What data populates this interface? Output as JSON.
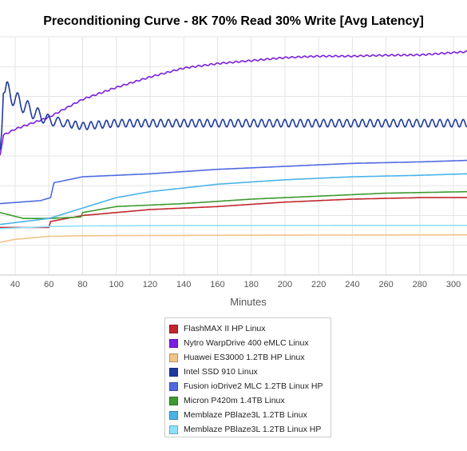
{
  "chart_data": {
    "type": "line",
    "title": "Preconditioning Curve - 8K 70% Read 30% Write [Avg Latency]",
    "xlabel": "Minutes",
    "ylabel": "",
    "xlim": [
      31,
      308
    ],
    "ylim": [
      0,
      80
    ],
    "x_ticks": [
      40,
      60,
      80,
      100,
      120,
      140,
      160,
      180,
      200,
      220,
      240,
      260,
      280,
      300
    ],
    "grid": "both",
    "legend_position": "bottom",
    "series": [
      {
        "name": "FlashMAX II HP Linux",
        "color": "#c0272d",
        "points": [
          [
            31,
            16
          ],
          [
            60,
            16
          ],
          [
            61,
            18
          ],
          [
            80,
            20
          ],
          [
            120,
            22
          ],
          [
            160,
            23
          ],
          [
            200,
            24.5
          ],
          [
            240,
            25.5
          ],
          [
            280,
            26
          ],
          [
            308,
            26
          ]
        ]
      },
      {
        "name": "Nytro WarpDrive 400 eMLC Linux",
        "color": "#7b1fe0",
        "points": [
          [
            31,
            40
          ],
          [
            33,
            47
          ],
          [
            40,
            49
          ],
          [
            60,
            53
          ],
          [
            80,
            59
          ],
          [
            100,
            63
          ],
          [
            120,
            66.5
          ],
          [
            140,
            69.5
          ],
          [
            160,
            71
          ],
          [
            180,
            72
          ],
          [
            200,
            73
          ],
          [
            220,
            73.5
          ],
          [
            240,
            73.5
          ],
          [
            260,
            73.8
          ],
          [
            280,
            73.9
          ],
          [
            308,
            75
          ]
        ]
      },
      {
        "name": "Huawei ES3000 1.2TB HP Linux",
        "color": "#f0c48a",
        "points": [
          [
            31,
            11
          ],
          [
            40,
            12
          ],
          [
            60,
            13
          ],
          [
            80,
            13.2
          ],
          [
            120,
            13.3
          ],
          [
            200,
            13.4
          ],
          [
            308,
            13.5
          ]
        ]
      },
      {
        "name": "Intel SSD 910 Linux",
        "color": "#1f3a9e",
        "points": [
          [
            31,
            42
          ],
          [
            32,
            48
          ],
          [
            33,
            61
          ],
          [
            35,
            62
          ],
          [
            40,
            59
          ],
          [
            50,
            55
          ],
          [
            60,
            52
          ],
          [
            70,
            51
          ],
          [
            80,
            50
          ],
          [
            100,
            51
          ],
          [
            150,
            51
          ],
          [
            200,
            51
          ],
          [
            250,
            51
          ],
          [
            300,
            51
          ],
          [
            308,
            51
          ]
        ]
      },
      {
        "name": "Fusion ioDrive2 MLC 1.2TB Linux HP",
        "color": "#4f6ae0",
        "points": [
          [
            31,
            24
          ],
          [
            55,
            25
          ],
          [
            61,
            26
          ],
          [
            63,
            31
          ],
          [
            80,
            33
          ],
          [
            120,
            34
          ],
          [
            160,
            35.5
          ],
          [
            200,
            36.5
          ],
          [
            240,
            37.5
          ],
          [
            280,
            38
          ],
          [
            308,
            38.5
          ]
        ]
      },
      {
        "name": "Micron P420m 1.4TB Linux",
        "color": "#3d9a2e",
        "points": [
          [
            31,
            21
          ],
          [
            45,
            19
          ],
          [
            60,
            19
          ],
          [
            79,
            19.5
          ],
          [
            80,
            21
          ],
          [
            100,
            23
          ],
          [
            140,
            24
          ],
          [
            180,
            25.5
          ],
          [
            220,
            26.5
          ],
          [
            260,
            27.5
          ],
          [
            308,
            28
          ]
        ]
      },
      {
        "name": "Memblaze PBlaze3L 1.2TB Linux",
        "color": "#4ab3e8",
        "points": [
          [
            31,
            17
          ],
          [
            60,
            19
          ],
          [
            80,
            22.5
          ],
          [
            100,
            26
          ],
          [
            120,
            28
          ],
          [
            160,
            30.5
          ],
          [
            200,
            32
          ],
          [
            240,
            33
          ],
          [
            280,
            33.5
          ],
          [
            308,
            34
          ]
        ]
      },
      {
        "name": "Memblaze PBlaze3L 1.2TB Linux HP",
        "color": "#8fe0ff",
        "points": [
          [
            31,
            15.6
          ],
          [
            60,
            16.3
          ],
          [
            80,
            16.5
          ],
          [
            120,
            16.6
          ],
          [
            308,
            16.7
          ]
        ]
      }
    ]
  }
}
